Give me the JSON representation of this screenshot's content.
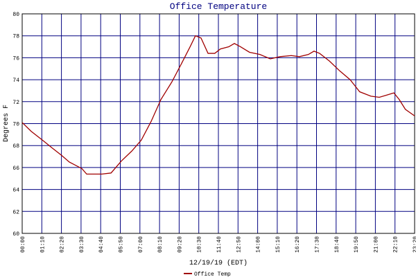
{
  "chart_data": {
    "type": "line",
    "title": "Office Temperature",
    "x_label": "12/19/19 (EDT)",
    "y_label": "Degrees F",
    "x": [
      0,
      32,
      72,
      106,
      141,
      168,
      213,
      230,
      284,
      317,
      354,
      391,
      425,
      460,
      495,
      534,
      569,
      601,
      618,
      638,
      663,
      687,
      707,
      737,
      757,
      779,
      811,
      848,
      885,
      920,
      960,
      989,
      1021,
      1041,
      1061,
      1096,
      1133,
      1170,
      1204,
      1244,
      1274,
      1301,
      1326,
      1345,
      1367,
      1400
    ],
    "series": [
      {
        "name": "Office Temp",
        "color": "#a00000",
        "values": [
          70.1,
          69.3,
          68.5,
          67.8,
          67.1,
          66.5,
          65.9,
          65.4,
          65.4,
          65.5,
          66.6,
          67.5,
          68.5,
          70.2,
          72.2,
          73.8,
          75.5,
          77.1,
          78.0,
          77.8,
          76.4,
          76.4,
          76.8,
          77.0,
          77.3,
          77.0,
          76.5,
          76.3,
          75.9,
          76.1,
          76.2,
          76.1,
          76.3,
          76.6,
          76.4,
          75.7,
          74.8,
          74.0,
          72.9,
          72.5,
          72.4,
          72.6,
          72.8,
          72.2,
          71.3,
          70.7
        ]
      }
    ],
    "xlim": [
      0,
      1400
    ],
    "ylim": [
      60,
      80
    ],
    "xticks": [
      {
        "value": 0,
        "label": "00:00"
      },
      {
        "value": 70,
        "label": "01:10"
      },
      {
        "value": 140,
        "label": "02:20"
      },
      {
        "value": 210,
        "label": "03:30"
      },
      {
        "value": 280,
        "label": "04:40"
      },
      {
        "value": 350,
        "label": "05:50"
      },
      {
        "value": 420,
        "label": "07:00"
      },
      {
        "value": 490,
        "label": "08:10"
      },
      {
        "value": 560,
        "label": "09:20"
      },
      {
        "value": 630,
        "label": "10:30"
      },
      {
        "value": 700,
        "label": "11:40"
      },
      {
        "value": 770,
        "label": "12:50"
      },
      {
        "value": 840,
        "label": "14:00"
      },
      {
        "value": 910,
        "label": "15:10"
      },
      {
        "value": 980,
        "label": "16:20"
      },
      {
        "value": 1050,
        "label": "17:30"
      },
      {
        "value": 1120,
        "label": "18:40"
      },
      {
        "value": 1190,
        "label": "19:50"
      },
      {
        "value": 1260,
        "label": "21:00"
      },
      {
        "value": 1330,
        "label": "22:10"
      },
      {
        "value": 1400,
        "label": "23:20"
      }
    ],
    "yticks": [
      60,
      62,
      64,
      66,
      68,
      70,
      72,
      74,
      76,
      78,
      80
    ],
    "grid": true,
    "grid_color": "#000080",
    "legend": "bottom"
  }
}
